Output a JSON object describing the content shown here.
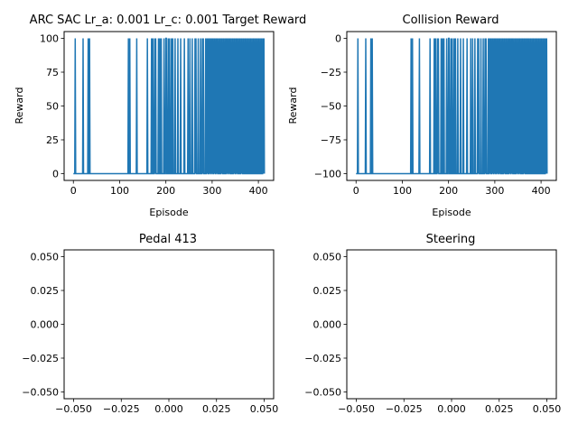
{
  "chart_data": [
    {
      "type": "line",
      "title": "ARC SAC Lr_a: 0.001 Lr_c: 0.001 Target Reward",
      "xlabel": "Episode",
      "ylabel": "Reward",
      "xlim": [
        -20,
        433
      ],
      "ylim": [
        -5,
        105
      ],
      "xticks": [
        0,
        100,
        200,
        300,
        400
      ],
      "yticks": [
        0,
        25,
        50,
        75,
        100
      ],
      "color": "#1f77b4",
      "series": [
        {
          "x_range": [
            0,
            413
          ],
          "levels": [
            0,
            100
          ],
          "base_value": 0,
          "spike_value": 100,
          "spike_episodes": [
            4,
            21,
            32,
            35,
            119,
            122,
            137,
            160,
            169,
            172,
            176,
            178,
            184,
            187,
            190,
            196,
            200,
            201,
            205,
            208,
            212,
            215,
            220,
            226,
            232,
            240,
            248,
            252,
            257,
            263,
            265,
            270,
            275,
            279,
            281,
            286,
            289,
            291,
            294,
            296,
            299,
            301,
            304,
            306,
            309,
            311,
            314,
            317,
            320,
            322,
            325,
            328,
            331,
            333,
            336,
            338,
            341,
            344,
            347,
            349,
            352,
            354,
            357,
            360,
            363,
            365,
            368,
            371,
            374,
            377,
            380,
            383,
            386,
            389,
            392,
            395,
            398,
            401,
            404,
            407,
            410,
            412
          ]
        }
      ]
    },
    {
      "type": "line",
      "title": "Collision Reward",
      "xlabel": "Episode",
      "ylabel": "Reward",
      "xlim": [
        -20,
        433
      ],
      "ylim": [
        -105,
        5
      ],
      "xticks": [
        0,
        100,
        200,
        300,
        400
      ],
      "yticks": [
        0,
        -25,
        -50,
        -75,
        -100
      ],
      "color": "#1f77b4",
      "series": [
        {
          "x_range": [
            0,
            413
          ],
          "levels": [
            -100,
            0
          ],
          "base_value": -100,
          "spike_value": 0,
          "spike_episodes": [
            4,
            21,
            32,
            35,
            119,
            122,
            137,
            160,
            169,
            172,
            176,
            178,
            184,
            187,
            190,
            196,
            200,
            201,
            205,
            208,
            212,
            215,
            220,
            226,
            232,
            240,
            248,
            252,
            257,
            263,
            265,
            270,
            275,
            279,
            281,
            286,
            289,
            291,
            294,
            296,
            299,
            301,
            304,
            306,
            309,
            311,
            314,
            317,
            320,
            322,
            325,
            328,
            331,
            333,
            336,
            338,
            341,
            344,
            347,
            349,
            352,
            354,
            357,
            360,
            363,
            365,
            368,
            371,
            374,
            377,
            380,
            383,
            386,
            389,
            392,
            395,
            398,
            401,
            404,
            407,
            410,
            412
          ]
        }
      ]
    },
    {
      "type": "line",
      "title": "Pedal 413",
      "xlabel": "",
      "ylabel": "",
      "xlim": [
        -0.055,
        0.055
      ],
      "ylim": [
        -0.055,
        0.055
      ],
      "xticks": [
        -0.05,
        -0.025,
        0.0,
        0.025,
        0.05
      ],
      "xtick_labels": [
        "−0.050",
        "−0.025",
        "0.000",
        "0.025",
        "0.050"
      ],
      "yticks": [
        0.05,
        0.025,
        0.0,
        -0.025,
        -0.05
      ],
      "ytick_labels": [
        "0.050",
        "0.025",
        "0.000",
        "−0.025",
        "−0.050"
      ],
      "series": []
    },
    {
      "type": "line",
      "title": "Steering",
      "xlabel": "",
      "ylabel": "",
      "xlim": [
        -0.055,
        0.055
      ],
      "ylim": [
        -0.055,
        0.055
      ],
      "xticks": [
        -0.05,
        -0.025,
        0.0,
        0.025,
        0.05
      ],
      "xtick_labels": [
        "−0.050",
        "−0.025",
        "0.000",
        "0.025",
        "0.050"
      ],
      "yticks": [
        0.05,
        0.025,
        0.0,
        -0.025,
        -0.05
      ],
      "ytick_labels": [
        "0.050",
        "0.025",
        "0.000",
        "−0.025",
        "−0.050"
      ],
      "series": []
    }
  ]
}
